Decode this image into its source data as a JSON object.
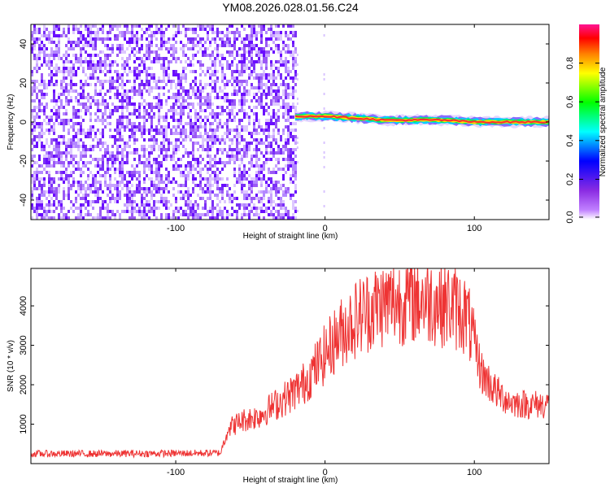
{
  "title": "YM08.2026.028.01.56.C24",
  "chart_data": [
    {
      "type": "heatmap",
      "xlabel": "Height of straight line (km)",
      "ylabel": "Frequency (Hz)",
      "xlim": [
        -197,
        150
      ],
      "ylim": [
        -50,
        50
      ],
      "xticks": [
        -100,
        0,
        100
      ],
      "yticks": [
        -40,
        -20,
        0,
        20,
        40
      ],
      "noise_region_x": [
        -197,
        -20
      ],
      "ridge": {
        "name": "",
        "x": [
          -20,
          0,
          20,
          40,
          60,
          80,
          100,
          120,
          150
        ],
        "y": [
          3,
          3,
          2,
          1,
          1,
          1,
          0,
          0,
          0
        ]
      },
      "colorbar": {
        "label": "Normalized spectral amplitude",
        "range": [
          0,
          1
        ],
        "ticks": [
          0.0,
          0.2,
          0.4,
          0.6,
          0.8
        ],
        "colors": [
          "#ffffff",
          "#8a2be2",
          "#0000ff",
          "#00ffff",
          "#00ff00",
          "#ffff00",
          "#ff7f00",
          "#ff0000",
          "#ff1493"
        ]
      },
      "grid": false
    },
    {
      "type": "line",
      "xlabel": "Height of straight line (km)",
      "ylabel": "SNR (10 * v/v)",
      "xlim": [
        -197,
        150
      ],
      "ylim": [
        0,
        4950
      ],
      "xticks": [
        -100,
        0,
        100
      ],
      "yticks": [
        1000,
        2000,
        3000,
        4000
      ],
      "series": [
        {
          "name": "",
          "color": "#ee3333",
          "x": [
            -197,
            -150,
            -100,
            -70,
            -65,
            -55,
            -45,
            -35,
            -25,
            -15,
            -5,
            5,
            15,
            25,
            35,
            45,
            55,
            65,
            75,
            85,
            95,
            100,
            105,
            115,
            125,
            135,
            150
          ],
          "y": [
            250,
            250,
            260,
            270,
            900,
            1100,
            1200,
            1450,
            1700,
            2000,
            2500,
            3050,
            3500,
            3800,
            4000,
            4100,
            4150,
            4200,
            4100,
            4000,
            3750,
            3000,
            2300,
            1800,
            1550,
            1500,
            1500
          ]
        }
      ],
      "grid": false
    }
  ]
}
